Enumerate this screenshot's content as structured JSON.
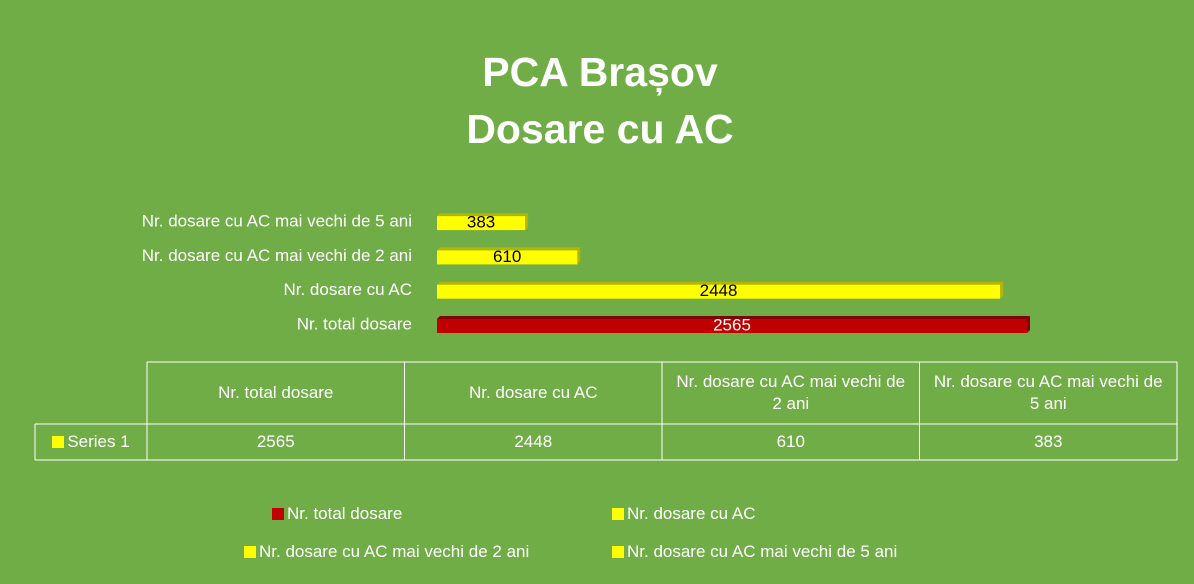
{
  "chart_data": {
    "type": "bar",
    "orientation": "horizontal",
    "title": [
      "PCA Brașov",
      "Dosare cu AC"
    ],
    "categories": [
      "Nr. total dosare",
      "Nr. dosare cu AC",
      "Nr. dosare cu AC mai vechi de 2 ani",
      "Nr. dosare cu AC mai vechi de 5 ani"
    ],
    "series": [
      {
        "name": "Series 1",
        "color": "#ffff00",
        "values": [
          2565,
          2448,
          610,
          383
        ],
        "point_colors": [
          "#c00000",
          "#ffff00",
          "#ffff00",
          "#ffff00"
        ]
      }
    ],
    "data_table": true,
    "legend": "bottom",
    "background": "#70ad47"
  }
}
